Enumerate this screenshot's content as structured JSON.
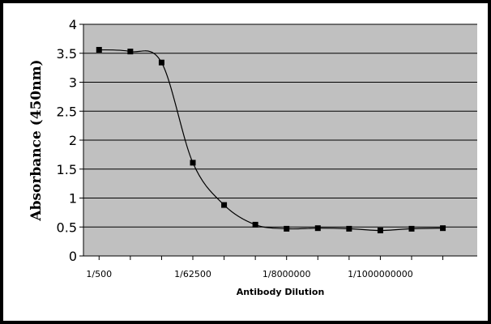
{
  "chart_data": {
    "type": "line",
    "title": "",
    "xlabel": "Antibody Dilution",
    "ylabel": "Absorbance (450nm)",
    "ylim": [
      0,
      4
    ],
    "yticks": [
      "0",
      "0.5",
      "1",
      "1.5",
      "2",
      "2.5",
      "3",
      "3.5",
      "4"
    ],
    "x_tick_labels": [
      "1/500",
      "1/62500",
      "1/8000000",
      "1/1000000000"
    ],
    "x_tick_positions": [
      1,
      4,
      7,
      10
    ],
    "grid": true,
    "legend": "none",
    "plot_background": "#c0c0c0",
    "line_color": "#000000",
    "marker": "square",
    "series": [
      {
        "x": [
          1,
          2,
          3,
          4,
          5,
          6,
          7,
          8,
          9,
          10,
          11,
          12
        ],
        "values": [
          3.56,
          3.53,
          3.34,
          1.61,
          0.88,
          0.54,
          0.47,
          0.48,
          0.47,
          0.44,
          0.47,
          0.48
        ]
      }
    ]
  }
}
